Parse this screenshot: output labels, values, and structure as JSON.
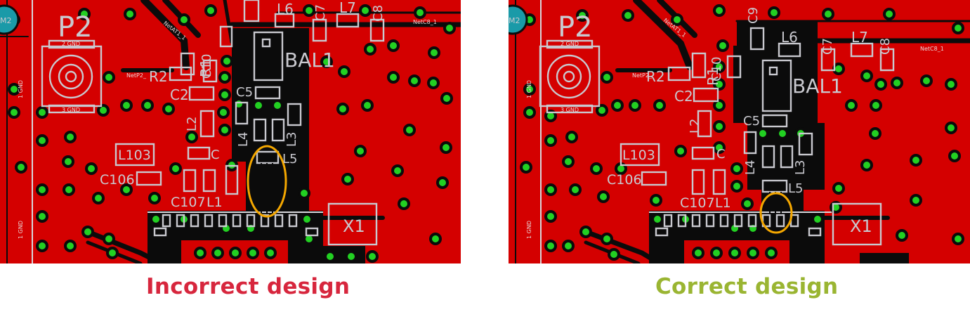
{
  "colors": {
    "board": "#d40000",
    "void": "#0b0b0b",
    "via": "#22d022",
    "silkscreen": "#c9c9cf",
    "highlight": "#f4a700",
    "incorrect": "#d7263d",
    "correct": "#9ab532",
    "mounting_hole": "#1a9aa8"
  },
  "captions": {
    "incorrect": "Incorrect design",
    "correct": "Correct design"
  },
  "left_panel": {
    "labels": {
      "m2": "M2",
      "p2": "P2",
      "r1": "R1",
      "r2": "R2",
      "l6": "L6",
      "l7": "L7",
      "c7": "C7",
      "c8": "C8",
      "c10": "C10",
      "c2": "C2",
      "c5": "C5",
      "l2": "L2",
      "l4": "L4",
      "l3": "L3",
      "l5": "L5",
      "c": "C",
      "l103": "L103",
      "c106": "C106",
      "c107": "C107",
      "l1": "L1",
      "b1": "BAL1",
      "x1": "X1",
      "net_p2": "NetP2_",
      "net_c8": "NetC8_1",
      "net_at1": "NetAT1_1",
      "gnd_left": "1 GND",
      "gnd_top": "2 GND",
      "gnd_bot": "3 GND"
    }
  },
  "right_panel": {
    "labels": {
      "m2": "M2",
      "p2": "P2",
      "r1": "R1",
      "r2": "R2",
      "l6": "L6",
      "l7": "L7",
      "c7": "C7",
      "c8": "C8",
      "c9": "C9",
      "c10": "C10",
      "c2": "C2",
      "c5": "C5",
      "l2": "L2",
      "l4": "L4",
      "l3": "L3",
      "l5": "L5",
      "c": "C",
      "l103": "L103",
      "c106": "C106",
      "c107": "C107",
      "l1": "L1",
      "b1": "BAL1",
      "x1": "X1",
      "net_p2": "NetP2_",
      "net_c8": "NetC8_1",
      "net_at1": "NetAT1_1",
      "gnd_left": "1 GND",
      "gnd_top": "2 GND",
      "gnd_bot": "3 GND"
    }
  }
}
